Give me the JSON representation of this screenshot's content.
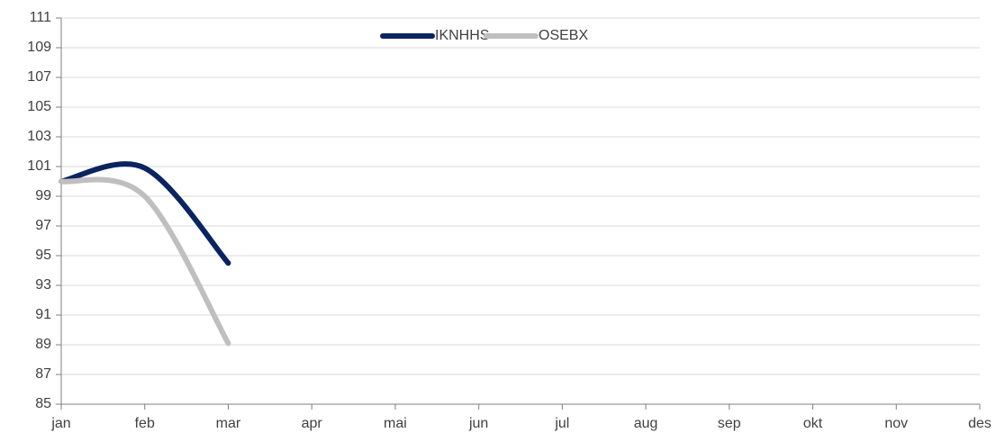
{
  "chart_data": {
    "type": "line",
    "categories": [
      "jan",
      "feb",
      "mar",
      "apr",
      "mai",
      "jun",
      "jul",
      "aug",
      "sep",
      "okt",
      "nov",
      "des"
    ],
    "series": [
      {
        "name": "IKNHHS",
        "color": "#0b2461",
        "values": [
          100,
          100.9,
          94.5,
          null,
          null,
          null,
          null,
          null,
          null,
          null,
          null,
          null
        ]
      },
      {
        "name": "OSEBX",
        "color": "#bfbfbf",
        "values": [
          100,
          99,
          89.1,
          null,
          null,
          null,
          null,
          null,
          null,
          null,
          null,
          null
        ]
      }
    ],
    "ylim": [
      85,
      111
    ],
    "yticks": [
      85,
      87,
      89,
      91,
      93,
      95,
      97,
      99,
      101,
      103,
      105,
      107,
      109,
      111
    ],
    "grid": true,
    "legend": "top",
    "smooth": true
  }
}
